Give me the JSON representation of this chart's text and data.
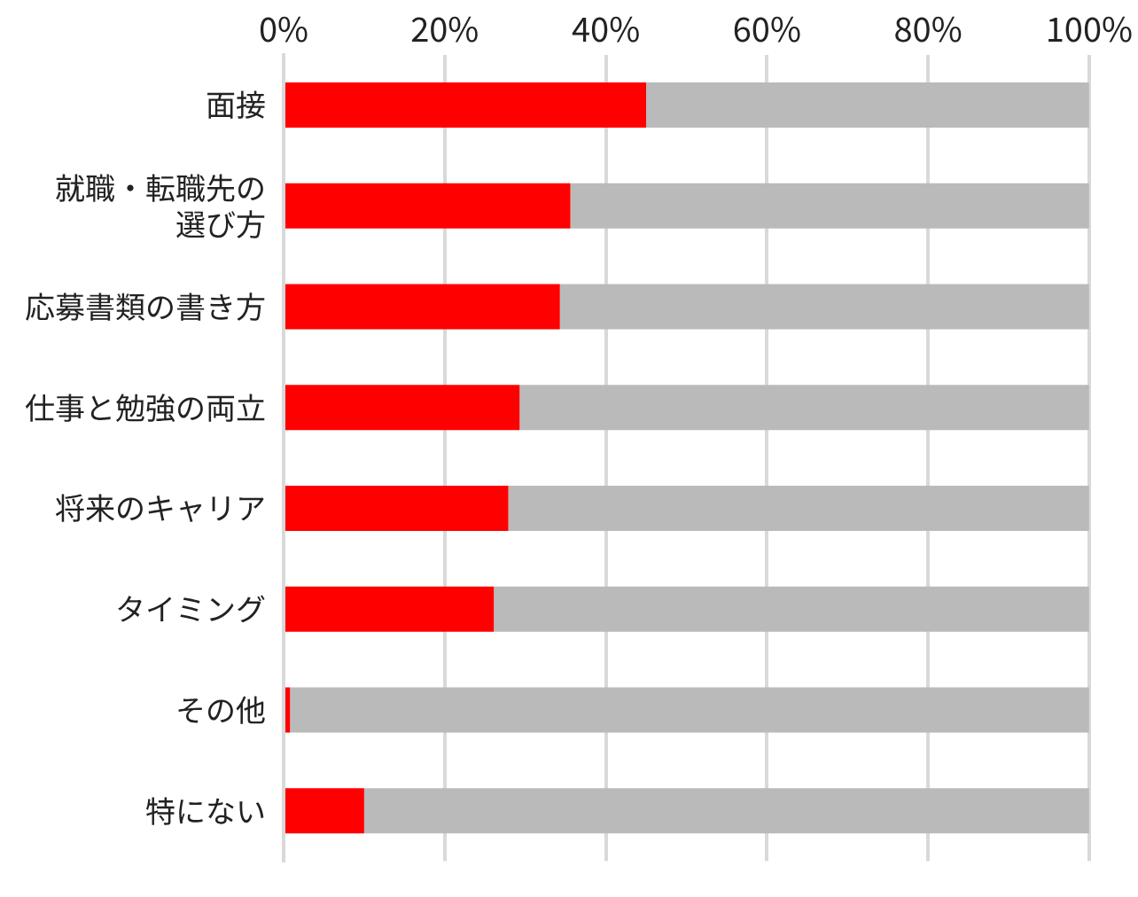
{
  "chart_data": {
    "type": "bar",
    "orientation": "horizontal",
    "stacked": true,
    "categories": [
      "面接",
      "就職・転職先の選び方",
      "応募書類の書き方",
      "仕事と勉強の両立",
      "将来のキャリア",
      "タイミング",
      "その他",
      "特にない"
    ],
    "series": [
      {
        "color": "#ff0000",
        "values": [
          45,
          35.6,
          34.3,
          29.3,
          27.9,
          26.1,
          0.8,
          10
        ]
      },
      {
        "color": "#bababa",
        "values": [
          55,
          64.4,
          65.7,
          70.7,
          72.1,
          73.9,
          99.2,
          90
        ]
      }
    ],
    "xlim": [
      0,
      100
    ],
    "xticks": [
      {
        "value": 0,
        "label": "0%"
      },
      {
        "value": 20,
        "label": "20%"
      },
      {
        "value": 40,
        "label": "40%"
      },
      {
        "value": 60,
        "label": "60%"
      },
      {
        "value": 80,
        "label": "80%"
      },
      {
        "value": 100,
        "label": "100%"
      }
    ],
    "grid": "x",
    "legend": false
  }
}
